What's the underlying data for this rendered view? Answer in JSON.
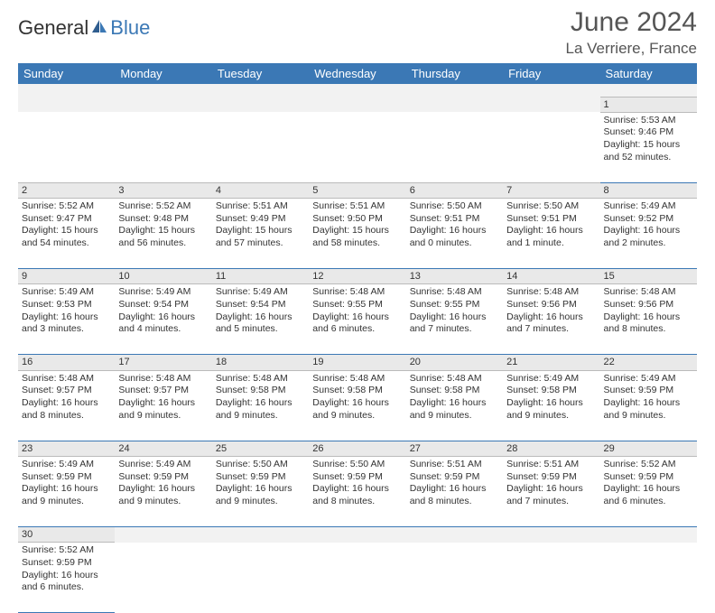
{
  "logo": {
    "part1": "General",
    "part2": "Blue"
  },
  "title": "June 2024",
  "location": "La Verriere, France",
  "colors": {
    "header_bg": "#3b78b5",
    "header_text": "#ffffff",
    "daynum_bg": "#e9e9e9",
    "border": "#3b78b5",
    "text": "#333333"
  },
  "day_headers": [
    "Sunday",
    "Monday",
    "Tuesday",
    "Wednesday",
    "Thursday",
    "Friday",
    "Saturday"
  ],
  "weeks": [
    {
      "numbers": [
        "",
        "",
        "",
        "",
        "",
        "",
        "1"
      ],
      "cells": [
        "",
        "",
        "",
        "",
        "",
        "",
        "Sunrise: 5:53 AM\nSunset: 9:46 PM\nDaylight: 15 hours and 52 minutes."
      ]
    },
    {
      "numbers": [
        "2",
        "3",
        "4",
        "5",
        "6",
        "7",
        "8"
      ],
      "cells": [
        "Sunrise: 5:52 AM\nSunset: 9:47 PM\nDaylight: 15 hours and 54 minutes.",
        "Sunrise: 5:52 AM\nSunset: 9:48 PM\nDaylight: 15 hours and 56 minutes.",
        "Sunrise: 5:51 AM\nSunset: 9:49 PM\nDaylight: 15 hours and 57 minutes.",
        "Sunrise: 5:51 AM\nSunset: 9:50 PM\nDaylight: 15 hours and 58 minutes.",
        "Sunrise: 5:50 AM\nSunset: 9:51 PM\nDaylight: 16 hours and 0 minutes.",
        "Sunrise: 5:50 AM\nSunset: 9:51 PM\nDaylight: 16 hours and 1 minute.",
        "Sunrise: 5:49 AM\nSunset: 9:52 PM\nDaylight: 16 hours and 2 minutes."
      ]
    },
    {
      "numbers": [
        "9",
        "10",
        "11",
        "12",
        "13",
        "14",
        "15"
      ],
      "cells": [
        "Sunrise: 5:49 AM\nSunset: 9:53 PM\nDaylight: 16 hours and 3 minutes.",
        "Sunrise: 5:49 AM\nSunset: 9:54 PM\nDaylight: 16 hours and 4 minutes.",
        "Sunrise: 5:49 AM\nSunset: 9:54 PM\nDaylight: 16 hours and 5 minutes.",
        "Sunrise: 5:48 AM\nSunset: 9:55 PM\nDaylight: 16 hours and 6 minutes.",
        "Sunrise: 5:48 AM\nSunset: 9:55 PM\nDaylight: 16 hours and 7 minutes.",
        "Sunrise: 5:48 AM\nSunset: 9:56 PM\nDaylight: 16 hours and 7 minutes.",
        "Sunrise: 5:48 AM\nSunset: 9:56 PM\nDaylight: 16 hours and 8 minutes."
      ]
    },
    {
      "numbers": [
        "16",
        "17",
        "18",
        "19",
        "20",
        "21",
        "22"
      ],
      "cells": [
        "Sunrise: 5:48 AM\nSunset: 9:57 PM\nDaylight: 16 hours and 8 minutes.",
        "Sunrise: 5:48 AM\nSunset: 9:57 PM\nDaylight: 16 hours and 9 minutes.",
        "Sunrise: 5:48 AM\nSunset: 9:58 PM\nDaylight: 16 hours and 9 minutes.",
        "Sunrise: 5:48 AM\nSunset: 9:58 PM\nDaylight: 16 hours and 9 minutes.",
        "Sunrise: 5:48 AM\nSunset: 9:58 PM\nDaylight: 16 hours and 9 minutes.",
        "Sunrise: 5:49 AM\nSunset: 9:58 PM\nDaylight: 16 hours and 9 minutes.",
        "Sunrise: 5:49 AM\nSunset: 9:59 PM\nDaylight: 16 hours and 9 minutes."
      ]
    },
    {
      "numbers": [
        "23",
        "24",
        "25",
        "26",
        "27",
        "28",
        "29"
      ],
      "cells": [
        "Sunrise: 5:49 AM\nSunset: 9:59 PM\nDaylight: 16 hours and 9 minutes.",
        "Sunrise: 5:49 AM\nSunset: 9:59 PM\nDaylight: 16 hours and 9 minutes.",
        "Sunrise: 5:50 AM\nSunset: 9:59 PM\nDaylight: 16 hours and 9 minutes.",
        "Sunrise: 5:50 AM\nSunset: 9:59 PM\nDaylight: 16 hours and 8 minutes.",
        "Sunrise: 5:51 AM\nSunset: 9:59 PM\nDaylight: 16 hours and 8 minutes.",
        "Sunrise: 5:51 AM\nSunset: 9:59 PM\nDaylight: 16 hours and 7 minutes.",
        "Sunrise: 5:52 AM\nSunset: 9:59 PM\nDaylight: 16 hours and 6 minutes."
      ]
    },
    {
      "numbers": [
        "30",
        "",
        "",
        "",
        "",
        "",
        ""
      ],
      "cells": [
        "Sunrise: 5:52 AM\nSunset: 9:59 PM\nDaylight: 16 hours and 6 minutes.",
        "",
        "",
        "",
        "",
        "",
        ""
      ]
    }
  ]
}
